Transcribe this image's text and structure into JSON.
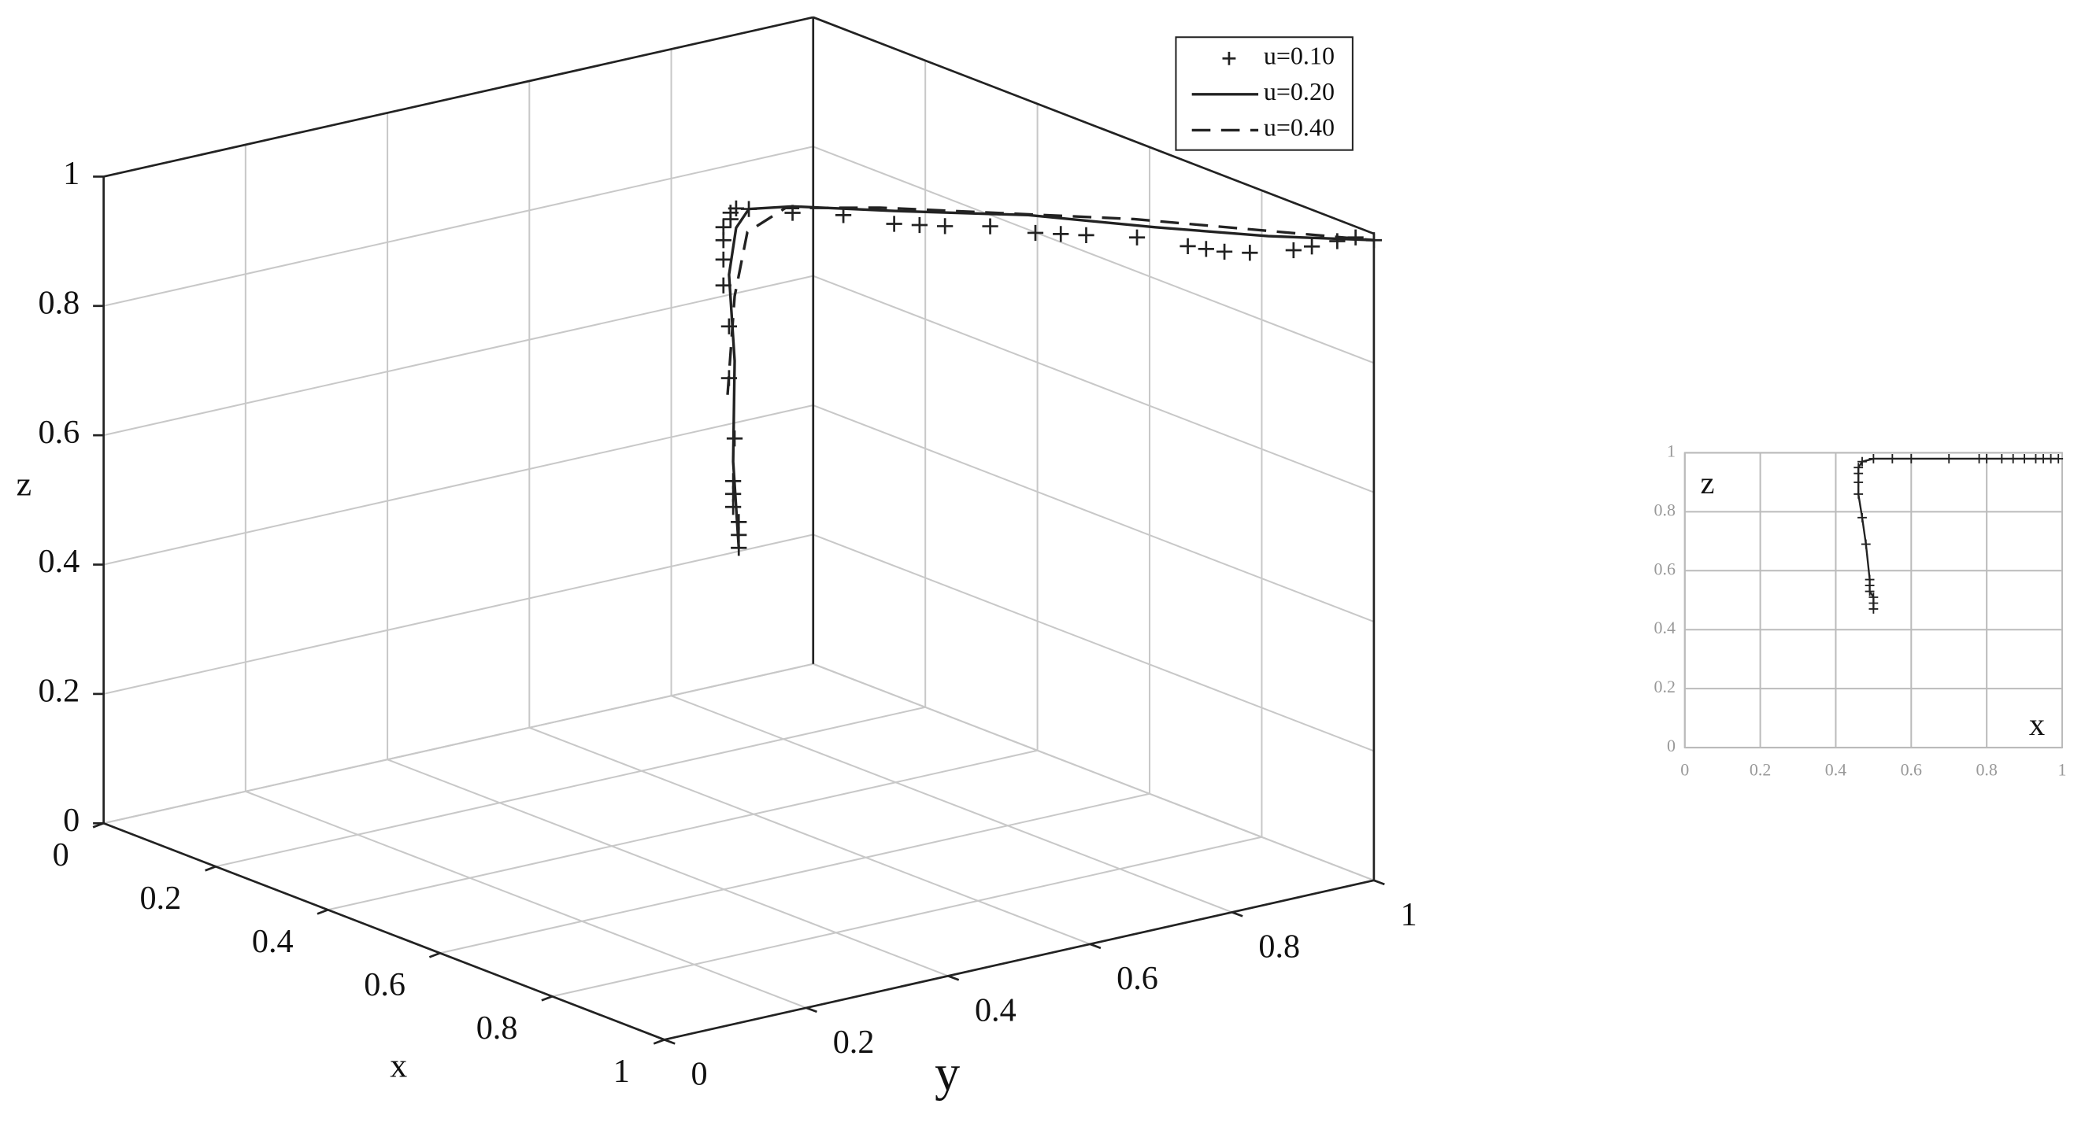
{
  "chart_data": [
    {
      "type": "line3d",
      "xlabel": "x",
      "ylabel": "y",
      "zlabel": "z",
      "xlim": [
        0,
        1
      ],
      "ylim": [
        0,
        1
      ],
      "zlim": [
        0,
        1
      ],
      "xticks": [
        0,
        0.2,
        0.4,
        0.6,
        0.8,
        1
      ],
      "yticks": [
        0,
        0.2,
        0.4,
        0.6,
        0.8,
        1
      ],
      "zticks": [
        0,
        0.2,
        0.4,
        0.6,
        0.8,
        1
      ],
      "grid": true,
      "legend": "upper right",
      "series": [
        {
          "name": "u=0.10",
          "color": "#222222",
          "style": "markers",
          "x": [
            0.5,
            0.5,
            0.5,
            0.49,
            0.49,
            0.49,
            0.48,
            0.47,
            0.47,
            0.46,
            0.46,
            0.46,
            0.46,
            0.46,
            0.46,
            0.47,
            0.48,
            0.52,
            0.56,
            0.6,
            0.62,
            0.64,
            0.67,
            0.7,
            0.72,
            0.74,
            0.78,
            0.82,
            0.84,
            0.86,
            0.88,
            0.92,
            0.94,
            0.96,
            0.98,
            1.0
          ],
          "y": [
            0.5,
            0.5,
            0.5,
            0.5,
            0.5,
            0.5,
            0.51,
            0.51,
            0.51,
            0.51,
            0.51,
            0.51,
            0.51,
            0.52,
            0.52,
            0.52,
            0.53,
            0.56,
            0.6,
            0.64,
            0.66,
            0.68,
            0.72,
            0.76,
            0.78,
            0.8,
            0.84,
            0.88,
            0.89,
            0.9,
            0.92,
            0.95,
            0.96,
            0.98,
            0.99,
            1.0
          ],
          "z": [
            0.47,
            0.49,
            0.51,
            0.53,
            0.55,
            0.57,
            0.63,
            0.72,
            0.8,
            0.86,
            0.9,
            0.93,
            0.95,
            0.96,
            0.97,
            0.98,
            0.98,
            0.98,
            0.98,
            0.97,
            0.97,
            0.97,
            0.97,
            0.96,
            0.96,
            0.96,
            0.96,
            0.95,
            0.95,
            0.95,
            0.95,
            0.96,
            0.97,
            0.98,
            0.99,
            0.99
          ]
        },
        {
          "name": "u=0.20",
          "color": "#222222",
          "style": "solid",
          "x": [
            0.5,
            0.49,
            0.48,
            0.47,
            0.47,
            0.48,
            0.52,
            0.6,
            0.7,
            0.8,
            0.9,
            1.0
          ],
          "y": [
            0.5,
            0.5,
            0.51,
            0.51,
            0.52,
            0.53,
            0.56,
            0.64,
            0.75,
            0.85,
            0.93,
            1.0
          ],
          "z": [
            0.47,
            0.6,
            0.75,
            0.88,
            0.95,
            0.98,
            0.99,
            0.99,
            0.99,
            0.98,
            0.98,
            0.99
          ]
        },
        {
          "name": "u=0.40",
          "color": "#222222",
          "style": "dashed",
          "x": [
            0.48,
            0.48,
            0.49,
            0.52,
            0.6,
            0.8,
            1.0
          ],
          "y": [
            0.5,
            0.51,
            0.52,
            0.55,
            0.62,
            0.82,
            1.0
          ],
          "z": [
            0.7,
            0.85,
            0.95,
            0.99,
            1.0,
            1.0,
            0.99
          ]
        }
      ]
    },
    {
      "type": "line",
      "xlabel": "x",
      "ylabel": "z",
      "xlim": [
        0,
        1
      ],
      "ylim": [
        0,
        1
      ],
      "xticks": [
        0,
        0.2,
        0.4,
        0.6,
        0.8,
        1
      ],
      "yticks": [
        0,
        0.2,
        0.4,
        0.6,
        0.8,
        1
      ],
      "grid": true,
      "x": [
        0.5,
        0.5,
        0.5,
        0.49,
        0.49,
        0.49,
        0.48,
        0.47,
        0.46,
        0.46,
        0.46,
        0.46,
        0.47,
        0.5,
        0.55,
        0.6,
        0.7,
        0.78,
        0.8,
        0.84,
        0.87,
        0.9,
        0.93,
        0.95,
        0.97,
        0.99
      ],
      "series": [
        {
          "color": "#222222",
          "style": "markers-line",
          "values": [
            0.47,
            0.49,
            0.51,
            0.53,
            0.55,
            0.57,
            0.69,
            0.78,
            0.86,
            0.9,
            0.93,
            0.95,
            0.97,
            0.98,
            0.98,
            0.98,
            0.98,
            0.98,
            0.98,
            0.98,
            0.98,
            0.98,
            0.98,
            0.98,
            0.98,
            0.98
          ]
        }
      ]
    }
  ]
}
